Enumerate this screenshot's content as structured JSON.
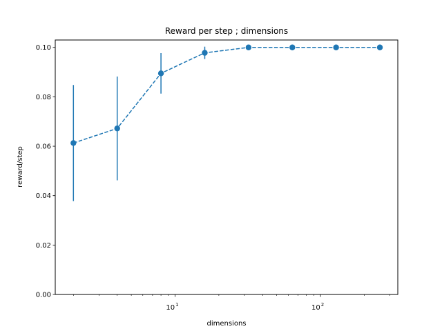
{
  "chart_data": {
    "type": "scatter",
    "title": "Reward per step ; dimensions",
    "xlabel": "dimensions",
    "ylabel": "reward/step",
    "xscale": "log",
    "xlim": [
      1.5,
      340
    ],
    "ylim": [
      0.0,
      0.103
    ],
    "grid": false,
    "x_major_ticks": [
      {
        "value": 10,
        "base": "10",
        "exp": "1"
      },
      {
        "value": 100,
        "base": "10",
        "exp": "2"
      }
    ],
    "y_ticks": [
      {
        "value": 0.0,
        "label": "0.00"
      },
      {
        "value": 0.02,
        "label": "0.02"
      },
      {
        "value": 0.04,
        "label": "0.04"
      },
      {
        "value": 0.06,
        "label": "0.06"
      },
      {
        "value": 0.08,
        "label": "0.08"
      },
      {
        "value": 0.1,
        "label": "0.10"
      }
    ],
    "series": [
      {
        "color": "#1f77b4",
        "linestyle": "dashed",
        "marker": "circle",
        "points": [
          {
            "x": 2,
            "y": 0.0613,
            "err": 0.0235
          },
          {
            "x": 4,
            "y": 0.0672,
            "err": 0.021
          },
          {
            "x": 8,
            "y": 0.0895,
            "err": 0.0082
          },
          {
            "x": 16,
            "y": 0.0978,
            "err": 0.0025
          },
          {
            "x": 32,
            "y": 0.1,
            "err": 0.0
          },
          {
            "x": 64,
            "y": 0.1,
            "err": 0.0
          },
          {
            "x": 128,
            "y": 0.1,
            "err": 0.0
          },
          {
            "x": 256,
            "y": 0.1,
            "err": 0.0
          }
        ]
      }
    ]
  }
}
